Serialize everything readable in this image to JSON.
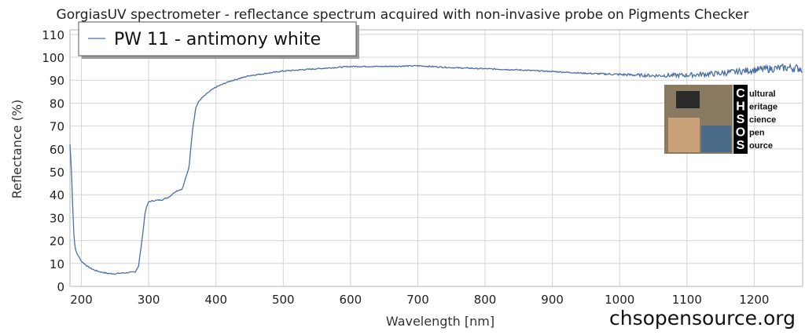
{
  "chart_data": {
    "type": "line",
    "title": "GorgiasUV spectrometer - reflectance spectrum acquired with non-invasive probe on Pigments Checker",
    "xlabel": "Wavelength [nm]",
    "ylabel": "Reflectance (%)",
    "xlim": [
      183,
      1272
    ],
    "ylim": [
      0,
      112
    ],
    "x_ticks": [
      200,
      300,
      400,
      500,
      600,
      700,
      800,
      900,
      1000,
      1100,
      1200
    ],
    "y_ticks": [
      0,
      10,
      20,
      30,
      40,
      50,
      60,
      70,
      80,
      90,
      100,
      110
    ],
    "grid": true,
    "legend_position": "top-left",
    "series": [
      {
        "name": "PW 11 - antimony white",
        "color": "#4a6fa5",
        "x": [
          183,
          185,
          187,
          189,
          191,
          194,
          197,
          200,
          210,
          220,
          230,
          240,
          250,
          260,
          270,
          280,
          285,
          290,
          295,
          300,
          310,
          320,
          330,
          340,
          350,
          360,
          365,
          370,
          375,
          380,
          390,
          400,
          420,
          450,
          500,
          550,
          600,
          650,
          700,
          750,
          800,
          850,
          900,
          950,
          1000,
          1050,
          1100,
          1150,
          1200,
          1250,
          1272
        ],
        "y": [
          62,
          52,
          35,
          22,
          16,
          14,
          12.5,
          11,
          8.5,
          7,
          6.2,
          5.6,
          5.5,
          5.8,
          6.0,
          6.3,
          9,
          20,
          33,
          37,
          37.5,
          37.8,
          39,
          41.5,
          42.5,
          52,
          68,
          78,
          81,
          82.5,
          85,
          87,
          89.5,
          92,
          94,
          95,
          96,
          96,
          96.3,
          95.5,
          95,
          94.5,
          93.8,
          93,
          92.5,
          92,
          92.2,
          93,
          94.5,
          95.5,
          95
        ]
      }
    ]
  },
  "watermark": "chsopensource.org",
  "logo": {
    "letters": [
      "C",
      "H",
      "S",
      "O",
      "S"
    ],
    "words": [
      "ultural",
      "eritage",
      "cience",
      "pen",
      "ource"
    ]
  }
}
